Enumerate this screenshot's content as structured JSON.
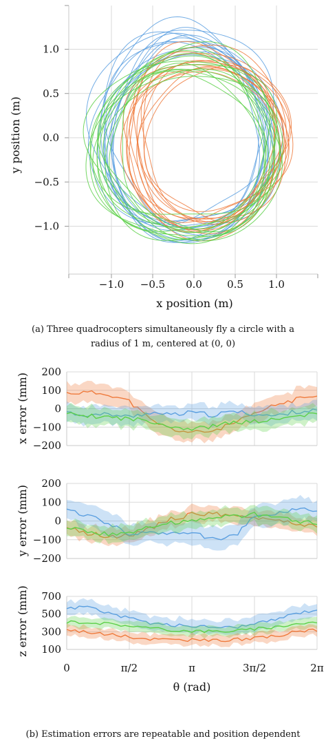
{
  "captions": {
    "a_line1": "(a) Three quadrocopters simultaneously fly a circle with a",
    "a_line2": "radius of 1 m, centered at (0, 0)",
    "b": "(b) Estimation errors are repeatable and position dependent"
  },
  "colors": {
    "blue": "#5b9fe0",
    "orange": "#ef7a3c",
    "green": "#5cd048"
  },
  "chart_data": [
    {
      "type": "line",
      "xlabel": "x position (m)",
      "ylabel": "y position (m)",
      "xlim": [
        -1.5,
        1.5
      ],
      "ylim": [
        -1.5,
        1.5
      ],
      "xticks": [
        "−1.0",
        "−0.5",
        "0.0",
        "0.5",
        "1.0"
      ],
      "yticks": [
        "1.0",
        "0.5",
        "0.0",
        "−0.5",
        "−1.0"
      ],
      "grid": true,
      "series": [
        {
          "color": "blue",
          "center": [
            -0.08,
            0.02
          ],
          "radius": [
            1.05,
            1.12
          ],
          "loops": 13
        },
        {
          "color": "orange",
          "center": [
            0.18,
            -0.02
          ],
          "radius": [
            0.95,
            0.97
          ],
          "loops": 13
        },
        {
          "color": "green",
          "center": [
            -0.08,
            -0.12
          ],
          "radius": [
            1.1,
            0.97
          ],
          "loops": 13
        }
      ]
    },
    {
      "type": "line",
      "ylabel": "x error (mm)",
      "ylim": [
        -200,
        200
      ],
      "yticks": [
        "200",
        "100",
        "0",
        "−100",
        "−200"
      ],
      "grid": true,
      "series": [
        {
          "color": "orange",
          "values": [
            85,
            88,
            80,
            40,
            -60,
            -110,
            -130,
            -120,
            -80,
            -30,
            20,
            50,
            80
          ],
          "band": 50
        },
        {
          "color": "blue",
          "values": [
            -20,
            -35,
            -30,
            -45,
            -20,
            -35,
            -20,
            -35,
            -15,
            -30,
            -40,
            -15,
            -10
          ],
          "band": 45
        },
        {
          "color": "green",
          "values": [
            -30,
            -40,
            -45,
            -55,
            -65,
            -95,
            -110,
            -95,
            -75,
            -70,
            -60,
            -40,
            -30
          ],
          "band": 45
        }
      ]
    },
    {
      "type": "line",
      "ylabel": "y error (mm)",
      "ylim": [
        -200,
        200
      ],
      "yticks": [
        "200",
        "100",
        "0",
        "−100",
        "−200"
      ],
      "grid": true,
      "series": [
        {
          "color": "orange",
          "values": [
            -25,
            -65,
            -85,
            -75,
            -40,
            10,
            35,
            40,
            20,
            15,
            10,
            -15,
            -25
          ],
          "band": 40
        },
        {
          "color": "blue",
          "values": [
            55,
            30,
            -20,
            -65,
            -65,
            -60,
            -60,
            -95,
            -85,
            20,
            40,
            65,
            55
          ],
          "band": 55
        },
        {
          "color": "green",
          "values": [
            -30,
            -55,
            -70,
            -60,
            -35,
            -10,
            5,
            15,
            25,
            35,
            20,
            0,
            -15
          ],
          "band": 40
        }
      ]
    },
    {
      "type": "line",
      "xlabel": "θ (rad)",
      "ylabel": "z error (mm)",
      "ylim": [
        100,
        700
      ],
      "yticks": [
        "700",
        "500",
        "300",
        "100"
      ],
      "xticks": [
        "0",
        "π/2",
        "π",
        "3π/2",
        "2π"
      ],
      "grid": true,
      "series": [
        {
          "color": "blue",
          "values": [
            560,
            590,
            510,
            450,
            400,
            375,
            365,
            355,
            350,
            385,
            440,
            510,
            550
          ],
          "band": 75
        },
        {
          "color": "green",
          "values": [
            410,
            410,
            390,
            370,
            340,
            320,
            310,
            305,
            310,
            330,
            355,
            390,
            410
          ],
          "band": 55
        },
        {
          "color": "orange",
          "values": [
            320,
            300,
            270,
            240,
            220,
            210,
            205,
            200,
            210,
            225,
            250,
            300,
            320
          ],
          "band": 55
        }
      ]
    }
  ]
}
